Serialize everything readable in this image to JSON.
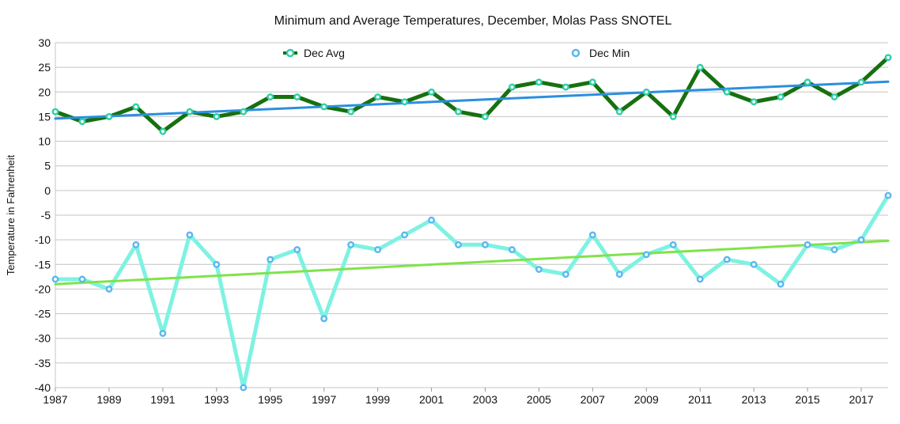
{
  "chart_data": {
    "type": "line",
    "title": "Minimum and Average Temperatures, December, Molas Pass SNOTEL",
    "xlabel": "",
    "ylabel": "Temperature in Fahrenheit",
    "ylim": [
      -40,
      30
    ],
    "xlim": [
      1987,
      2018
    ],
    "yticks": [
      "30",
      "25",
      "20",
      "15",
      "10",
      "5",
      "0",
      "-5",
      "-10",
      "-15",
      "-20",
      "-25",
      "-30",
      "-35",
      "-40"
    ],
    "xticks": [
      "1987",
      "1989",
      "1991",
      "1993",
      "1995",
      "1997",
      "1999",
      "2001",
      "2003",
      "2005",
      "2007",
      "2009",
      "2011",
      "2013",
      "2015",
      "2017"
    ],
    "grid": true,
    "legend_position": "top",
    "x": [
      1987,
      1988,
      1989,
      1990,
      1991,
      1992,
      1993,
      1994,
      1995,
      1996,
      1997,
      1998,
      1999,
      2000,
      2001,
      2002,
      2003,
      2004,
      2005,
      2006,
      2007,
      2008,
      2009,
      2010,
      2011,
      2012,
      2013,
      2014,
      2015,
      2016,
      2017,
      2018
    ],
    "series": [
      {
        "name": "Dec Avg",
        "line_color": "#17700f",
        "marker_color": "#2ecfa8",
        "trend_color": "#2a8fe0",
        "values": [
          16,
          14,
          15,
          17,
          12,
          16,
          15,
          16,
          19,
          19,
          17,
          16,
          19,
          18,
          20,
          16,
          15,
          21,
          22,
          21,
          22,
          16,
          20,
          15,
          25,
          20,
          18,
          19,
          22,
          19,
          22,
          27
        ],
        "trend": [
          14.6,
          22.1
        ]
      },
      {
        "name": "Dec Min",
        "line_color": "#7ef2e2",
        "marker_color": "#5ab8ef",
        "trend_color": "#7fe34a",
        "values": [
          -18,
          -18,
          -20,
          -11,
          -29,
          -9,
          -15,
          -40,
          -14,
          -12,
          -26,
          -11,
          -12,
          -9,
          -6,
          -11,
          -11,
          -12,
          -16,
          -17,
          -9,
          -17,
          -13,
          -11,
          -18,
          -14,
          -15,
          -19,
          -11,
          -12,
          -10,
          -1
        ],
        "trend": [
          -19,
          -10.2
        ]
      }
    ]
  }
}
